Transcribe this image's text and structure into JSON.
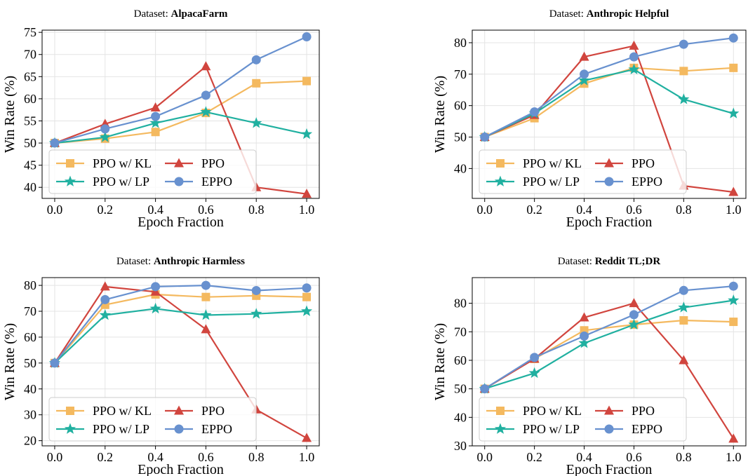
{
  "chart_data": [
    {
      "type": "line",
      "title_prefix": "Dataset: ",
      "title": "AlpacaFarm",
      "xlabel": "Epoch Fraction",
      "ylabel": "Win Rate (%)",
      "x": [
        0.0,
        0.2,
        0.4,
        0.6,
        0.8,
        1.0
      ],
      "xticks": [
        "0.0",
        "0.2",
        "0.4",
        "0.6",
        "0.8",
        "1.0"
      ],
      "xlim": [
        -0.05,
        1.05
      ],
      "ylim": [
        37.5,
        75.5
      ],
      "yticks": [
        40,
        45,
        50,
        55,
        60,
        65,
        70,
        75
      ],
      "grid": true,
      "legend_position": "lower-left",
      "series": [
        {
          "name": "PPO w/ KL",
          "color": "#f4b95f",
          "marker": "square",
          "values": [
            50.0,
            51.0,
            52.5,
            56.8,
            63.5,
            64.0
          ]
        },
        {
          "name": "PPO",
          "color": "#d1453e",
          "marker": "triangle",
          "values": [
            50.0,
            54.3,
            58.0,
            67.3,
            40.0,
            38.5
          ]
        },
        {
          "name": "PPO w/ LP",
          "color": "#20b0a0",
          "marker": "star",
          "values": [
            50.0,
            51.3,
            54.5,
            57.0,
            54.5,
            52.0
          ]
        },
        {
          "name": "EPPO",
          "color": "#6891cf",
          "marker": "circle",
          "values": [
            50.0,
            53.2,
            56.0,
            60.8,
            68.8,
            74.0
          ]
        }
      ]
    },
    {
      "type": "line",
      "title_prefix": "Dataset: ",
      "title": "Anthropic Helpful",
      "xlabel": "Epoch Fraction",
      "ylabel": "Win Rate (%)",
      "x": [
        0.0,
        0.2,
        0.4,
        0.6,
        0.8,
        1.0
      ],
      "xticks": [
        "0.0",
        "0.2",
        "0.4",
        "0.6",
        "0.8",
        "1.0"
      ],
      "xlim": [
        -0.05,
        1.05
      ],
      "ylim": [
        30.5,
        84
      ],
      "yticks": [
        40,
        50,
        60,
        70,
        80
      ],
      "grid": true,
      "legend_position": "lower-left",
      "series": [
        {
          "name": "PPO w/ KL",
          "color": "#f4b95f",
          "marker": "square",
          "values": [
            50.0,
            56.0,
            67.0,
            72.0,
            71.0,
            72.0
          ]
        },
        {
          "name": "PPO",
          "color": "#d1453e",
          "marker": "triangle",
          "values": [
            50.0,
            57.0,
            75.5,
            79.0,
            34.5,
            32.5
          ]
        },
        {
          "name": "PPO w/ LP",
          "color": "#20b0a0",
          "marker": "star",
          "values": [
            50.0,
            57.5,
            68.0,
            71.5,
            62.0,
            57.5
          ]
        },
        {
          "name": "EPPO",
          "color": "#6891cf",
          "marker": "circle",
          "values": [
            50.0,
            58.0,
            70.0,
            75.5,
            79.5,
            81.5
          ]
        }
      ]
    },
    {
      "type": "line",
      "title_prefix": "Dataset: ",
      "title": "Anthropic Harmless",
      "xlabel": "Epoch Fraction",
      "ylabel": "Win Rate (%)",
      "x": [
        0.0,
        0.2,
        0.4,
        0.6,
        0.8,
        1.0
      ],
      "xticks": [
        "0.0",
        "0.2",
        "0.4",
        "0.6",
        "0.8",
        "1.0"
      ],
      "xlim": [
        -0.05,
        1.05
      ],
      "ylim": [
        18,
        83
      ],
      "yticks": [
        20,
        30,
        40,
        50,
        60,
        70,
        80
      ],
      "grid": true,
      "legend_position": "lower-left",
      "series": [
        {
          "name": "PPO w/ KL",
          "color": "#f4b95f",
          "marker": "square",
          "values": [
            50.0,
            72.5,
            76.5,
            75.5,
            76.0,
            75.5
          ]
        },
        {
          "name": "PPO",
          "color": "#d1453e",
          "marker": "triangle",
          "values": [
            50.0,
            79.5,
            77.5,
            63.0,
            32.0,
            21.0
          ]
        },
        {
          "name": "PPO w/ LP",
          "color": "#20b0a0",
          "marker": "star",
          "values": [
            50.0,
            68.5,
            71.0,
            68.5,
            69.0,
            70.0
          ]
        },
        {
          "name": "EPPO",
          "color": "#6891cf",
          "marker": "circle",
          "values": [
            50.0,
            74.5,
            79.5,
            80.0,
            78.0,
            79.0
          ]
        }
      ]
    },
    {
      "type": "line",
      "title_prefix": "Dataset: ",
      "title": "Reddit TL;DR",
      "xlabel": "Epoch Fraction",
      "ylabel": "Win Rate (%)",
      "x": [
        0.0,
        0.2,
        0.4,
        0.6,
        0.8,
        1.0
      ],
      "xticks": [
        "0.0",
        "0.2",
        "0.4",
        "0.6",
        "0.8",
        "1.0"
      ],
      "xlim": [
        -0.05,
        1.05
      ],
      "ylim": [
        30,
        89
      ],
      "yticks": [
        30,
        40,
        50,
        60,
        70,
        80
      ],
      "grid": true,
      "legend_position": "lower-left",
      "series": [
        {
          "name": "PPO w/ KL",
          "color": "#f4b95f",
          "marker": "square",
          "values": [
            50.0,
            60.5,
            70.5,
            72.5,
            74.0,
            73.5
          ]
        },
        {
          "name": "PPO",
          "color": "#d1453e",
          "marker": "triangle",
          "values": [
            50.0,
            60.5,
            75.0,
            80.0,
            60.0,
            32.5
          ]
        },
        {
          "name": "PPO w/ LP",
          "color": "#20b0a0",
          "marker": "star",
          "values": [
            50.0,
            55.5,
            66.0,
            72.5,
            78.5,
            81.0
          ]
        },
        {
          "name": "EPPO",
          "color": "#6891cf",
          "marker": "circle",
          "values": [
            50.0,
            61.0,
            68.5,
            76.0,
            84.5,
            86.0
          ]
        }
      ]
    }
  ]
}
